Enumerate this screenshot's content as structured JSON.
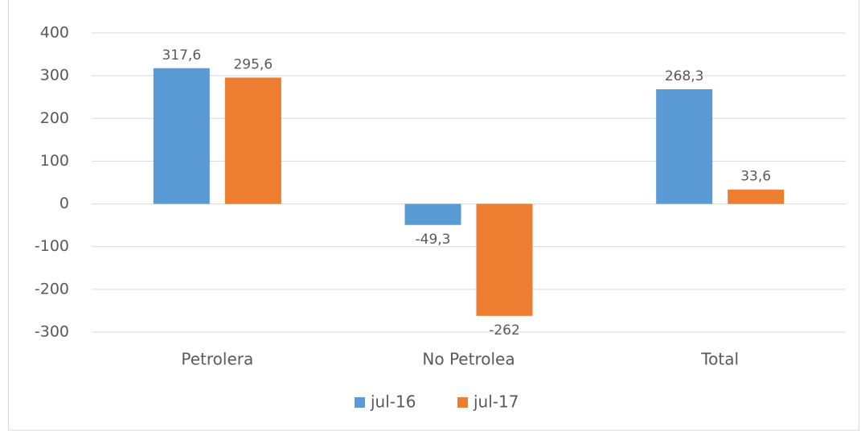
{
  "chart_data": {
    "type": "bar",
    "categories": [
      "Petrolera",
      "No Petrolea",
      "Total"
    ],
    "series": [
      {
        "name": "jul-16",
        "color": "#5b9bd5",
        "values": [
          317.6,
          -49.3,
          268.3
        ],
        "value_labels": [
          "317,6",
          "-49,3",
          "268,3"
        ]
      },
      {
        "name": "jul-17",
        "color": "#ed7d31",
        "values": [
          295.6,
          -262,
          33.6
        ],
        "value_labels": [
          "295,6",
          "-262",
          "33,6"
        ]
      }
    ],
    "ylim": [
      -300,
      400
    ],
    "yticks": [
      -300,
      -200,
      -100,
      0,
      100,
      200,
      300,
      400
    ],
    "grid": true,
    "legend": "bottom"
  }
}
